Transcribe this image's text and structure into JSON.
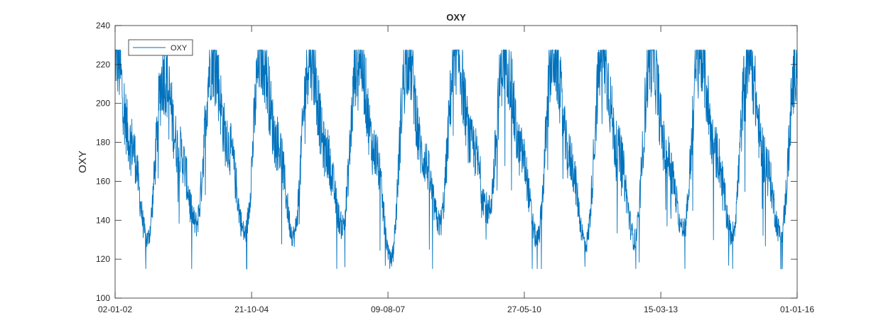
{
  "chart_data": {
    "type": "line",
    "title": "OXY",
    "xlabel": "",
    "ylabel": "OXY",
    "xlim": [
      "2002-01-02",
      "2016-01-01"
    ],
    "ylim": [
      100,
      240
    ],
    "x_tick_labels": [
      "02-01-02",
      "21-10-04",
      "09-08-07",
      "27-05-10",
      "15-03-13",
      "01-01-16"
    ],
    "x_tick_dates": [
      "2002-01-02",
      "2004-10-21",
      "2007-08-09",
      "2010-05-27",
      "2013-03-15",
      "2016-01-01"
    ],
    "y_ticks": [
      100,
      120,
      140,
      160,
      180,
      200,
      220,
      240
    ],
    "grid": false,
    "legend": {
      "position": "top-left",
      "entries": [
        "OXY"
      ]
    },
    "series": [
      {
        "name": "OXY",
        "color": "#0072BD",
        "x": [
          "2002-01-02",
          "2002-05-01",
          "2002-09-01",
          "2003-01-01",
          "2003-05-01",
          "2003-09-01",
          "2004-01-01",
          "2004-05-01",
          "2004-09-01",
          "2005-01-01",
          "2005-05-01",
          "2005-09-01",
          "2006-01-01",
          "2006-05-01",
          "2006-09-01",
          "2007-01-01",
          "2007-05-01",
          "2007-09-01",
          "2008-01-01",
          "2008-05-01",
          "2008-09-01",
          "2009-01-01",
          "2009-05-01",
          "2009-09-01",
          "2010-01-01",
          "2010-05-01",
          "2010-09-01",
          "2011-01-01",
          "2011-05-01",
          "2011-09-01",
          "2012-01-01",
          "2012-05-01",
          "2012-09-01",
          "2013-01-01",
          "2013-05-01",
          "2013-09-01",
          "2014-01-01",
          "2014-05-01",
          "2014-09-01",
          "2015-01-01",
          "2015-05-01",
          "2015-09-01",
          "2016-01-01"
        ],
        "y": [
          227,
          180,
          130,
          215,
          175,
          138,
          225,
          178,
          133,
          227,
          180,
          132,
          226,
          175,
          137,
          227,
          175,
          120,
          227,
          172,
          138,
          227,
          178,
          145,
          227,
          175,
          130,
          227,
          172,
          128,
          227,
          175,
          130,
          226,
          172,
          135,
          227,
          175,
          133,
          226,
          172,
          133,
          225
        ]
      }
    ]
  }
}
